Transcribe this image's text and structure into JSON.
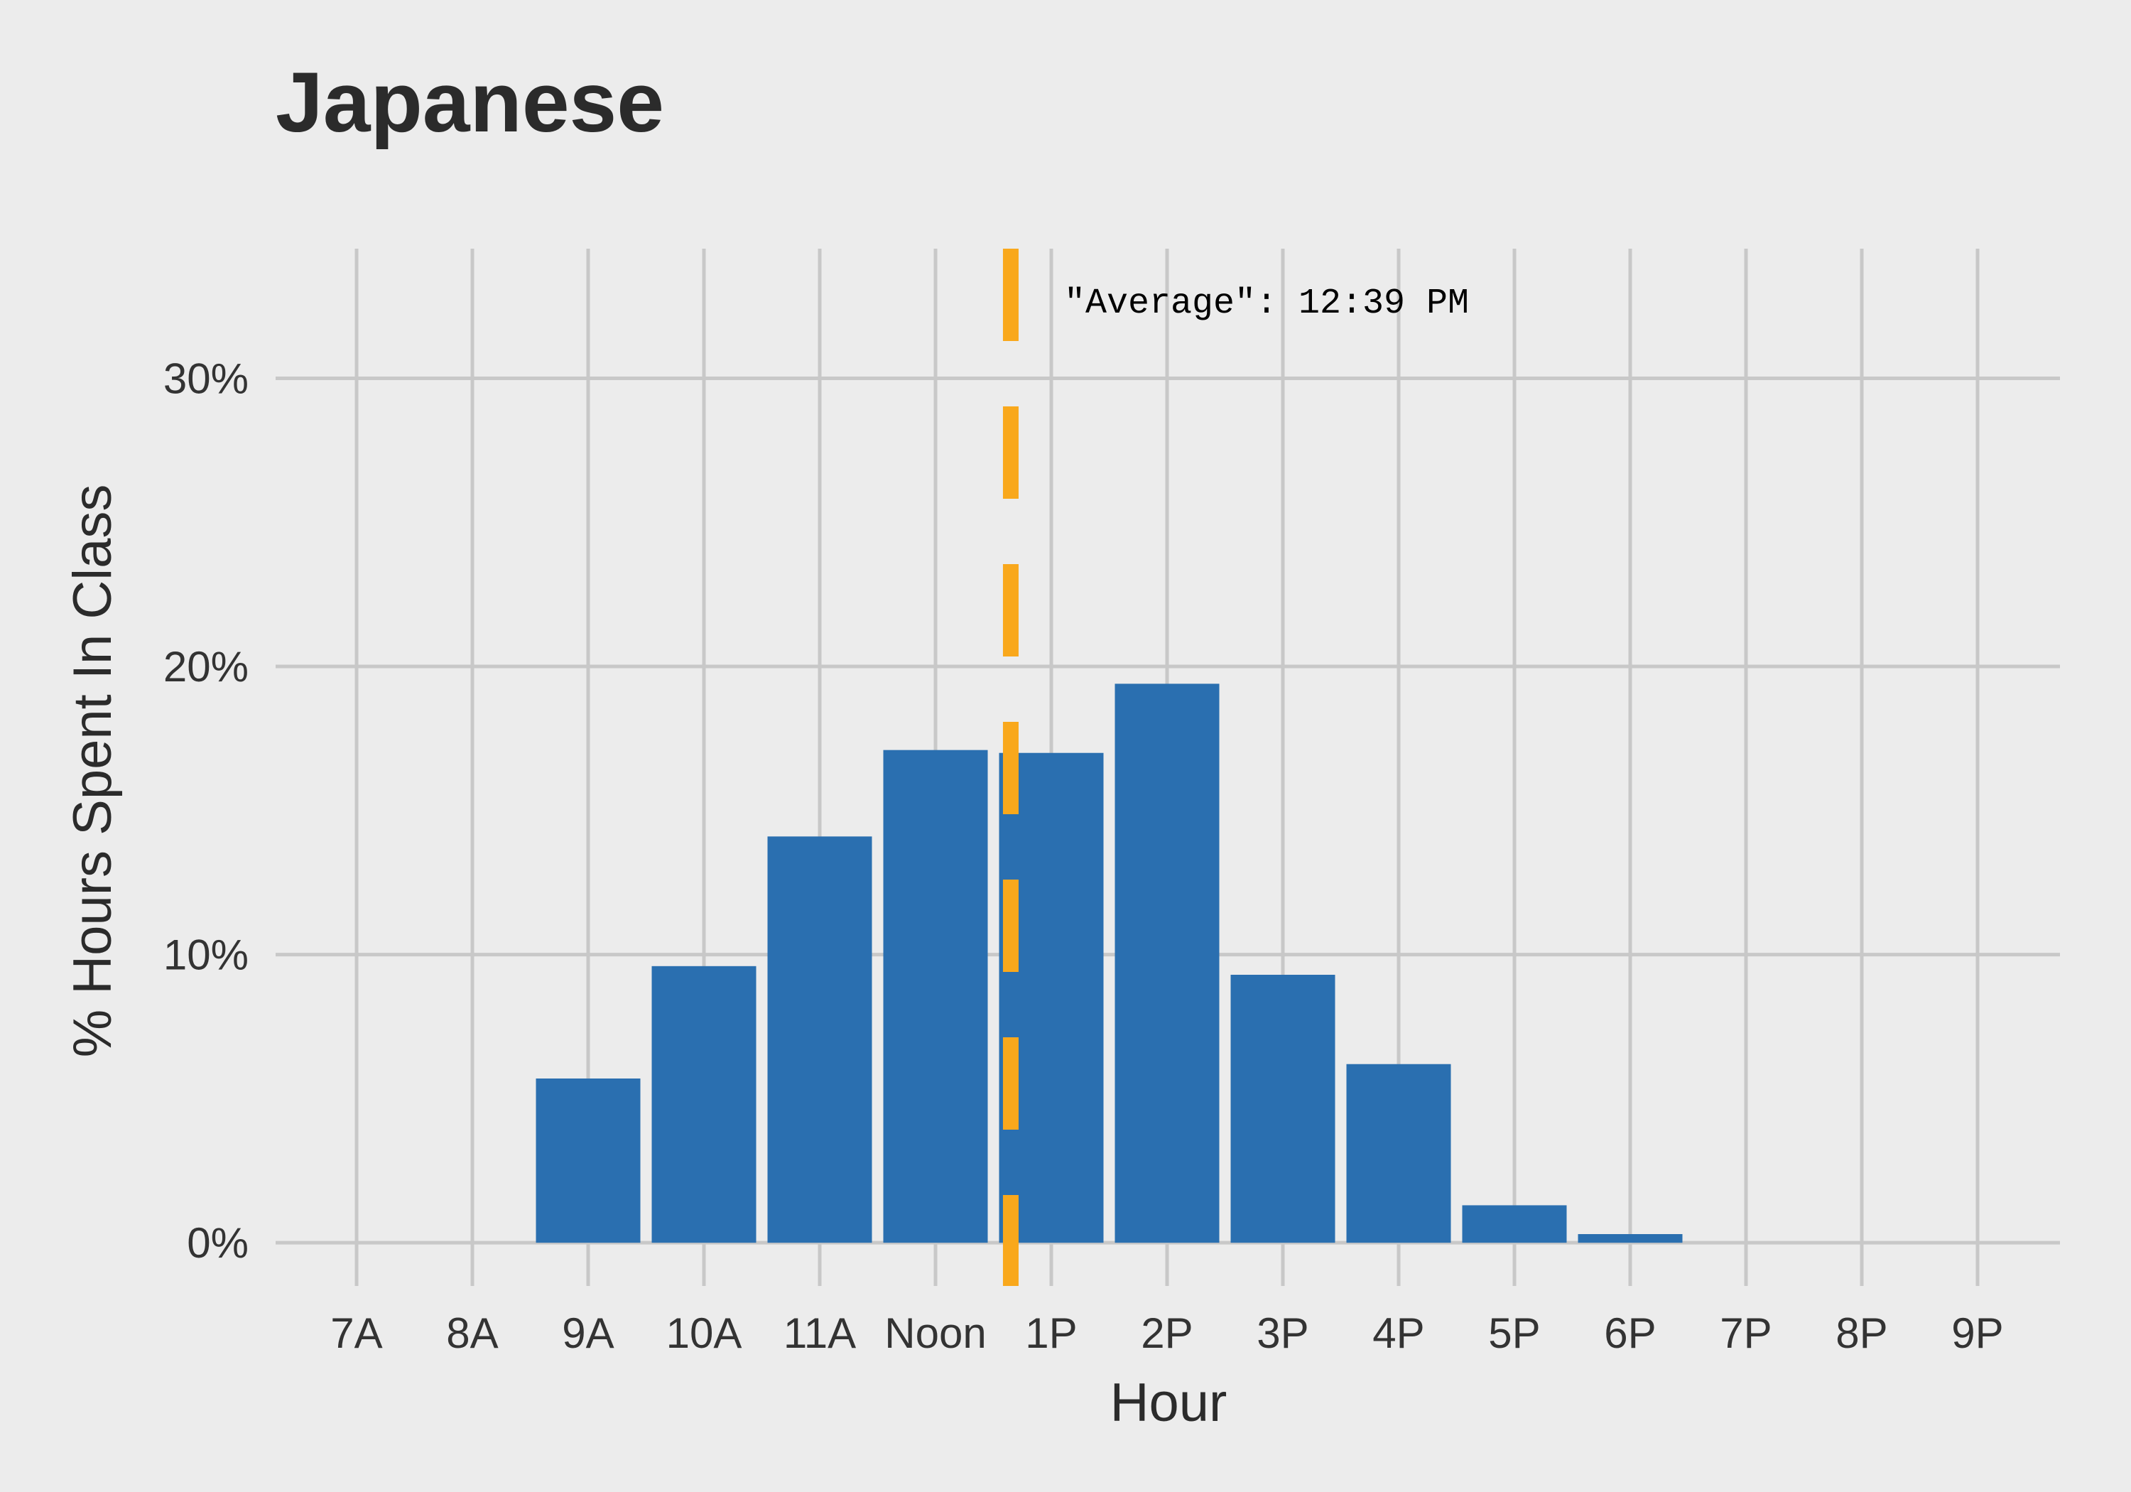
{
  "chart_data": {
    "type": "bar",
    "title": "Japanese",
    "xlabel": "Hour",
    "ylabel": "% Hours Spent In Class",
    "categories": [
      "7A",
      "8A",
      "9A",
      "10A",
      "11A",
      "Noon",
      "1P",
      "2P",
      "3P",
      "4P",
      "5P",
      "6P",
      "7P",
      "8P",
      "9P"
    ],
    "values": [
      0,
      0,
      5.7,
      9.6,
      14.1,
      17.1,
      17.0,
      19.4,
      9.3,
      6.2,
      1.3,
      0.3,
      0,
      0,
      0
    ],
    "ylim": [
      -1.5,
      34.5
    ],
    "yticks": [
      0,
      10,
      20,
      30
    ],
    "ytick_labels": [
      "0%",
      "10%",
      "20%",
      "30%"
    ],
    "grid": true,
    "average_line": {
      "x_hour": 12.65,
      "label": "\"Average\": 12:39 PM",
      "style": "dashed"
    },
    "colors": {
      "background": "#ECECEC",
      "bar": "#2A6FB0",
      "average_line": "#F9A81C",
      "grid": "#C8C8C8"
    }
  }
}
